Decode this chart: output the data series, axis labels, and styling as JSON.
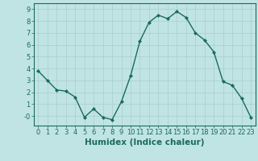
{
  "x": [
    0,
    1,
    2,
    3,
    4,
    5,
    6,
    7,
    8,
    9,
    10,
    11,
    12,
    13,
    14,
    15,
    16,
    17,
    18,
    19,
    20,
    21,
    22,
    23
  ],
  "y": [
    3.8,
    3.0,
    2.2,
    2.1,
    1.6,
    -0.1,
    0.6,
    -0.1,
    -0.3,
    1.2,
    3.4,
    6.3,
    7.9,
    8.5,
    8.2,
    8.8,
    8.3,
    7.0,
    6.4,
    5.4,
    2.9,
    2.6,
    1.5,
    -0.1
  ],
  "xlim": [
    -0.5,
    23.5
  ],
  "ylim": [
    -0.8,
    9.5
  ],
  "ytick_locs": [
    0,
    1,
    2,
    3,
    4,
    5,
    6,
    7,
    8,
    9
  ],
  "ytick_labels": [
    "-0",
    "1",
    "2",
    "3",
    "4",
    "5",
    "6",
    "7",
    "8",
    "9"
  ],
  "xticks": [
    0,
    1,
    2,
    3,
    4,
    5,
    6,
    7,
    8,
    9,
    10,
    11,
    12,
    13,
    14,
    15,
    16,
    17,
    18,
    19,
    20,
    21,
    22,
    23
  ],
  "xlabel": "Humidex (Indice chaleur)",
  "line_color": "#1a6b5a",
  "marker": "D",
  "marker_size": 2.0,
  "bg_color": "#c0e4e4",
  "grid_color": "#aacece",
  "xlabel_fontsize": 7.5,
  "tick_fontsize": 6.0,
  "linewidth": 1.0
}
